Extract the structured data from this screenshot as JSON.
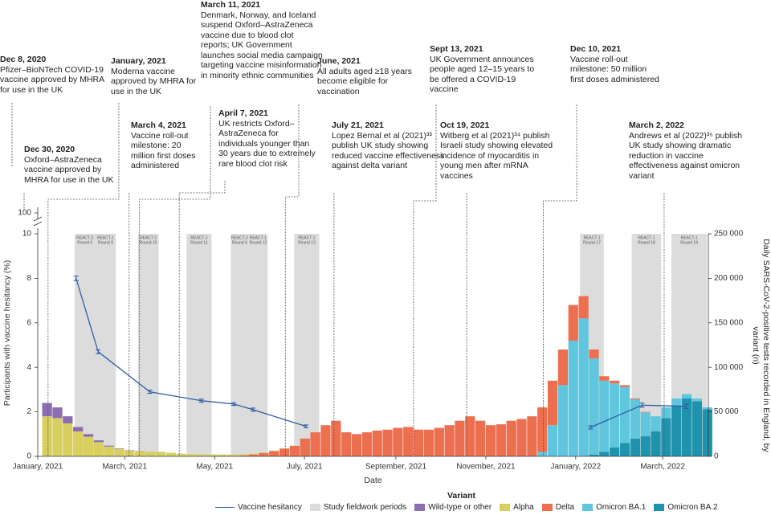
{
  "chart_data": {
    "type": "bar",
    "stacked": true,
    "annotations": [
      {
        "date": "Dec 8, 2020",
        "text": "Pfizer–BioNTech COVID-19 vaccine approved by MHRA for use in the UK"
      },
      {
        "date": "Dec 30, 2020",
        "text": "Oxford–AstraZeneca vaccine approved by MHRA for use in the UK"
      },
      {
        "date": "January, 2021",
        "x": "2021-01-08",
        "text": "Moderna vaccine approved by MHRA for use in the UK"
      },
      {
        "date": "March 4, 2021",
        "x": "2021-03-04",
        "text": "Vaccine roll-out milestone: 20 million first doses administered"
      },
      {
        "date": "March 11, 2021",
        "x": "2021-03-11",
        "text": "Denmark, Norway, and Iceland suspend Oxford–AstraZeneca vaccine due to blood clot reports; UK Government launches social media campaign targeting vaccine misinformation in minority ethnic communities"
      },
      {
        "date": "April 7, 2021",
        "x": "2021-04-07",
        "text": "UK restricts Oxford–AstraZeneca for individuals younger than 30 years due to extremely rare blood clot risk"
      },
      {
        "date": "June, 2021",
        "x": "2021-06-18",
        "text": "All adults aged ≥18 years become eligible for vaccination"
      },
      {
        "date": "July 21, 2021",
        "x": "2021-07-21",
        "text": "Lopez Bernal et al (2021)³³ publish UK study showing reduced vaccine effectiveness against delta variant"
      },
      {
        "date": "Sept 13, 2021",
        "x": "2021-09-13",
        "text": "UK Government announces people aged 12–15 years to be offered a COVID-19 vaccine"
      },
      {
        "date": "Oct 19, 2021",
        "x": "2021-10-19",
        "text": "Witberg et al (2021)³⁴ publish Israeli study showing elevated incidence of myocarditis in young men after mRNA vaccines"
      },
      {
        "date": "Dec 10, 2021",
        "x": "2021-12-10",
        "text": "Vaccine roll-out milestone: 50 million first doses administered"
      },
      {
        "date": "March 2, 2022",
        "x": "2022-03-02",
        "text": "Andrews et al (2022)³⁵ publish UK study showing dramatic reduction in vaccine effectiveness against omicron variant"
      }
    ],
    "xlabel": "Date",
    "ylabel": "Participants with vaccine hesitancy (%)",
    "y2label": "Daily SARS-CoV-2-positive tests recorded in England, by variant (n)",
    "xlim": [
      "2021-01-01",
      "2022-04-01"
    ],
    "xticks": [
      {
        "value": "2021-01-01",
        "label": "January, 2021"
      },
      {
        "value": "2021-03-01",
        "label": "March, 2021"
      },
      {
        "value": "2021-05-01",
        "label": "May, 2021"
      },
      {
        "value": "2021-07-01",
        "label": "July, 2021"
      },
      {
        "value": "2021-09-01",
        "label": "September, 2021"
      },
      {
        "value": "2021-11-01",
        "label": "November, 2021"
      },
      {
        "value": "2022-01-01",
        "label": "January, 2022"
      },
      {
        "value": "2022-03-01",
        "label": "March, 2022"
      }
    ],
    "ylim": [
      0,
      10
    ],
    "yticks": [
      0,
      2,
      4,
      6,
      8,
      10
    ],
    "y_break_tick": 100,
    "y2lim": [
      0,
      250000
    ],
    "y2ticks": [
      0,
      {
        "value": 50000,
        "label": "50 000"
      },
      {
        "value": 100000,
        "label": "100 000"
      },
      {
        "value": 150000,
        "label": "150 000"
      },
      {
        "value": 200000,
        "label": "200 000"
      },
      {
        "value": 250000,
        "label": "250 000"
      }
    ],
    "legend_title": "Variant",
    "x": [
      "2021-01-04",
      "2021-01-11",
      "2021-01-18",
      "2021-01-25",
      "2021-02-01",
      "2021-02-08",
      "2021-02-15",
      "2021-02-22",
      "2021-03-01",
      "2021-03-08",
      "2021-03-15",
      "2021-03-22",
      "2021-03-29",
      "2021-04-05",
      "2021-04-12",
      "2021-04-19",
      "2021-04-26",
      "2021-05-03",
      "2021-05-10",
      "2021-05-17",
      "2021-05-24",
      "2021-05-31",
      "2021-06-07",
      "2021-06-14",
      "2021-06-21",
      "2021-06-28",
      "2021-07-05",
      "2021-07-12",
      "2021-07-19",
      "2021-07-26",
      "2021-08-02",
      "2021-08-09",
      "2021-08-16",
      "2021-08-23",
      "2021-08-30",
      "2021-09-06",
      "2021-09-13",
      "2021-09-20",
      "2021-09-27",
      "2021-10-04",
      "2021-10-11",
      "2021-10-18",
      "2021-10-25",
      "2021-11-01",
      "2021-11-08",
      "2021-11-15",
      "2021-11-22",
      "2021-11-29",
      "2021-12-06",
      "2021-12-13",
      "2021-12-20",
      "2021-12-27",
      "2022-01-03",
      "2022-01-10",
      "2022-01-17",
      "2022-01-24",
      "2022-01-31",
      "2022-02-07",
      "2022-02-14",
      "2022-02-21",
      "2022-02-28",
      "2022-03-07",
      "2022-03-14",
      "2022-03-21",
      "2022-03-28"
    ],
    "series": [
      {
        "name": "Wild-type or other",
        "color": "#8c6db3",
        "axis": "y2",
        "values": [
          15000,
          12000,
          8000,
          5000,
          3000,
          2000,
          1000,
          500,
          300,
          200,
          100,
          100,
          0,
          0,
          0,
          0,
          0,
          0,
          0,
          0,
          0,
          0,
          0,
          0,
          0,
          0,
          0,
          0,
          0,
          0,
          0,
          0,
          0,
          0,
          0,
          0,
          0,
          0,
          0,
          0,
          0,
          0,
          0,
          0,
          0,
          0,
          0,
          0,
          0,
          0,
          0,
          0,
          0,
          0,
          0,
          0,
          0,
          0,
          0,
          0,
          0,
          0,
          0,
          0,
          0
        ]
      },
      {
        "name": "Alpha",
        "color": "#d9cf5f",
        "axis": "y2",
        "values": [
          45000,
          43000,
          37000,
          28000,
          22000,
          16000,
          11000,
          8500,
          6700,
          5800,
          4900,
          4900,
          4000,
          3000,
          2500,
          2200,
          2000,
          1800,
          1600,
          1200,
          1000,
          800,
          500,
          300,
          200,
          100,
          0,
          0,
          0,
          0,
          0,
          0,
          0,
          0,
          0,
          0,
          0,
          0,
          0,
          0,
          0,
          0,
          0,
          0,
          0,
          0,
          0,
          0,
          0,
          0,
          0,
          0,
          0,
          0,
          0,
          0,
          0,
          0,
          0,
          0,
          0,
          0,
          0,
          0,
          0
        ]
      },
      {
        "name": "Delta",
        "color": "#ec6f4f",
        "axis": "y2",
        "values": [
          0,
          0,
          0,
          0,
          0,
          0,
          0,
          0,
          0,
          0,
          0,
          0,
          0,
          0,
          0,
          0,
          100,
          200,
          400,
          1000,
          2000,
          3700,
          6000,
          8700,
          11800,
          20000,
          27000,
          35000,
          40000,
          27000,
          25000,
          27000,
          29000,
          30000,
          32000,
          33000,
          30000,
          30000,
          32000,
          35000,
          40000,
          45000,
          40000,
          35000,
          36000,
          40000,
          42000,
          45000,
          50000,
          50000,
          40000,
          40000,
          25000,
          10000,
          5000,
          3000,
          2000,
          1000,
          500,
          0,
          0,
          0,
          0,
          0,
          0
        ]
      },
      {
        "name": "Omicron BA.1",
        "color": "#5fc6de",
        "axis": "y2",
        "values": [
          0,
          0,
          0,
          0,
          0,
          0,
          0,
          0,
          0,
          0,
          0,
          0,
          0,
          0,
          0,
          0,
          0,
          0,
          0,
          0,
          0,
          0,
          0,
          0,
          0,
          0,
          0,
          0,
          0,
          0,
          0,
          0,
          0,
          0,
          0,
          0,
          0,
          0,
          0,
          0,
          0,
          0,
          0,
          0,
          0,
          0,
          0,
          0,
          5000,
          35000,
          80000,
          130000,
          155000,
          108000,
          80000,
          72000,
          63000,
          44000,
          27000,
          17000,
          12000,
          8000,
          5000,
          3000,
          2000
        ]
      },
      {
        "name": "Omicron BA.2",
        "color": "#1f93ad",
        "axis": "y2",
        "values": [
          0,
          0,
          0,
          0,
          0,
          0,
          0,
          0,
          0,
          0,
          0,
          0,
          0,
          0,
          0,
          0,
          0,
          0,
          0,
          0,
          0,
          0,
          0,
          0,
          0,
          0,
          0,
          0,
          0,
          0,
          0,
          0,
          0,
          0,
          0,
          0,
          0,
          0,
          0,
          0,
          0,
          0,
          0,
          0,
          0,
          0,
          0,
          0,
          0,
          0,
          0,
          0,
          0,
          2000,
          5000,
          10000,
          15000,
          20000,
          22500,
          28000,
          43000,
          57000,
          65000,
          62000,
          53000
        ]
      }
    ],
    "hesitancy": {
      "name": "Vaccine hesitancy",
      "color": "#2d5fa6",
      "x": [
        "2021-01-27",
        "2021-02-11",
        "2021-03-18",
        "2021-04-22",
        "2021-05-14",
        "2021-05-27",
        "2021-07-02",
        "2022-01-11",
        "2022-02-15",
        "2022-03-17"
      ],
      "values": [
        8.0,
        4.7,
        2.9,
        2.5,
        2.35,
        2.1,
        1.35,
        1.3,
        2.3,
        2.25
      ],
      "errors": [
        0.1,
        0.08,
        0.07,
        0.07,
        0.06,
        0.07,
        0.06,
        0.07,
        0.09,
        0.1
      ]
    },
    "fieldwork": {
      "name": "Study fieldwork periods",
      "color": "#dcdcdc",
      "periods": [
        {
          "study": "REACT-2",
          "round": "Round 5",
          "start": "2021-01-26",
          "end": "2021-02-09"
        },
        {
          "study": "REACT-1",
          "round": "Round 9",
          "start": "2021-02-09",
          "end": "2021-02-23"
        },
        {
          "study": "REACT-1",
          "round": "Round 10",
          "start": "2021-03-10",
          "end": "2021-03-24"
        },
        {
          "study": "REACT-1",
          "round": "Round 11",
          "start": "2021-04-12",
          "end": "2021-04-29"
        },
        {
          "study": "REACT-2",
          "round": "Round 6",
          "start": "2021-05-12",
          "end": "2021-05-24"
        },
        {
          "study": "REACT-1",
          "round": "Round 12",
          "start": "2021-05-24",
          "end": "2021-06-06"
        },
        {
          "study": "REACT-1",
          "round": "Round 13",
          "start": "2021-06-24",
          "end": "2021-07-11"
        },
        {
          "study": "REACT-1",
          "round": "Round 17",
          "start": "2022-01-04",
          "end": "2022-01-20"
        },
        {
          "study": "REACT-1",
          "round": "Round 18",
          "start": "2022-02-08",
          "end": "2022-02-28"
        },
        {
          "study": "REACT-1",
          "round": "Round 19",
          "start": "2022-03-07",
          "end": "2022-03-31"
        }
      ]
    }
  }
}
